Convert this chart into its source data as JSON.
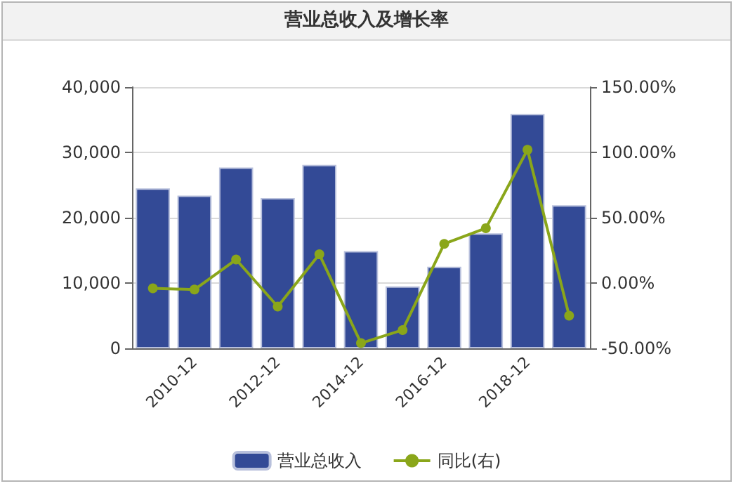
{
  "chart_data": {
    "type": "bar",
    "title": "营业总收入及增长率",
    "categories": [
      null,
      "2010-12",
      null,
      "2012-12",
      null,
      "2014-12",
      null,
      "2016-12",
      null,
      "2018-12",
      null
    ],
    "series": [
      {
        "name": "营业总收入",
        "color": "#334a96",
        "values": [
          24500,
          23400,
          27700,
          23000,
          28100,
          14900,
          9500,
          12500,
          17600,
          35900,
          21900
        ]
      },
      {
        "name": "同比(右)",
        "type": "line",
        "axis": "y2",
        "color": "#8aa61a",
        "marker": "circle",
        "values": [
          -4,
          -5,
          18,
          -18,
          22,
          -46,
          -36,
          30,
          42,
          102,
          -25
        ]
      }
    ],
    "ylim": [
      0,
      40000
    ],
    "yticks": [
      {
        "value": 0,
        "label": "0"
      },
      {
        "value": 10000,
        "label": "10,000"
      },
      {
        "value": 20000,
        "label": "20,000"
      },
      {
        "value": 30000,
        "label": "30,000"
      },
      {
        "value": 40000,
        "label": "40,000"
      }
    ],
    "y2lim": [
      -50,
      150
    ],
    "y2ticks": [
      {
        "value": -50,
        "label": "-50.00%"
      },
      {
        "value": 0,
        "label": "0.00%"
      },
      {
        "value": 50,
        "label": "50.00%"
      },
      {
        "value": 100,
        "label": "100.00%"
      },
      {
        "value": 150,
        "label": "150.00%"
      }
    ],
    "grid": "y",
    "legend": "bottom"
  }
}
